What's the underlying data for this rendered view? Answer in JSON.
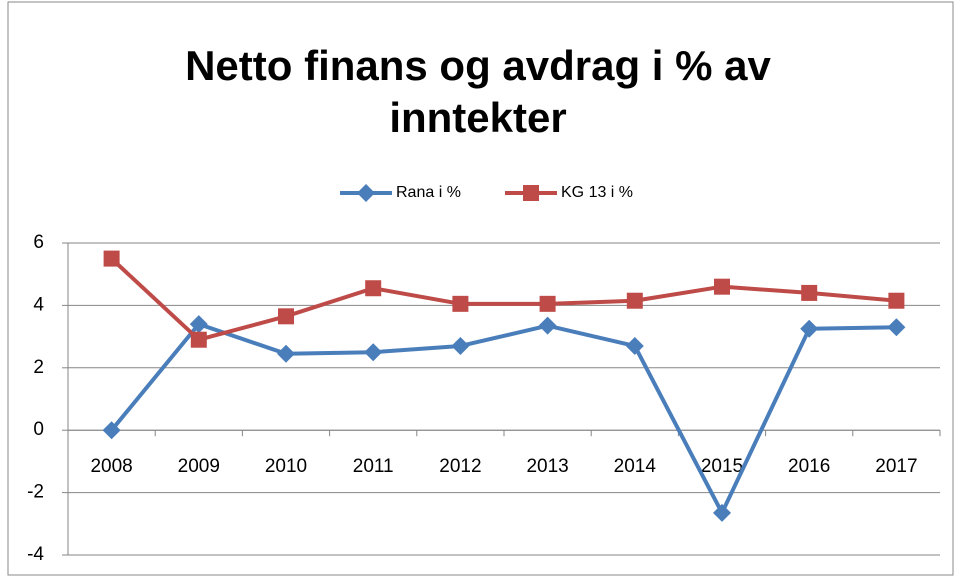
{
  "chart_data": {
    "type": "line",
    "title": "Netto finans og avdrag i % av inntekter",
    "categories": [
      "2008",
      "2009",
      "2010",
      "2011",
      "2012",
      "2013",
      "2014",
      "2015",
      "2016",
      "2017"
    ],
    "series": [
      {
        "name": "Rana i %",
        "color": "#4a7ebb",
        "marker": "diamond",
        "values": [
          0.0,
          3.4,
          2.45,
          2.5,
          2.7,
          3.35,
          2.7,
          -2.65,
          3.25,
          3.3
        ]
      },
      {
        "name": "KG 13 i %",
        "color": "#be4b48",
        "marker": "square",
        "values": [
          5.5,
          2.9,
          3.65,
          4.55,
          4.05,
          4.05,
          4.15,
          4.6,
          4.4,
          4.15
        ]
      }
    ],
    "ylim": [
      -4,
      6
    ],
    "yticks": [
      -4,
      -2,
      0,
      2,
      4,
      6
    ],
    "grid": true,
    "legend": "top"
  }
}
